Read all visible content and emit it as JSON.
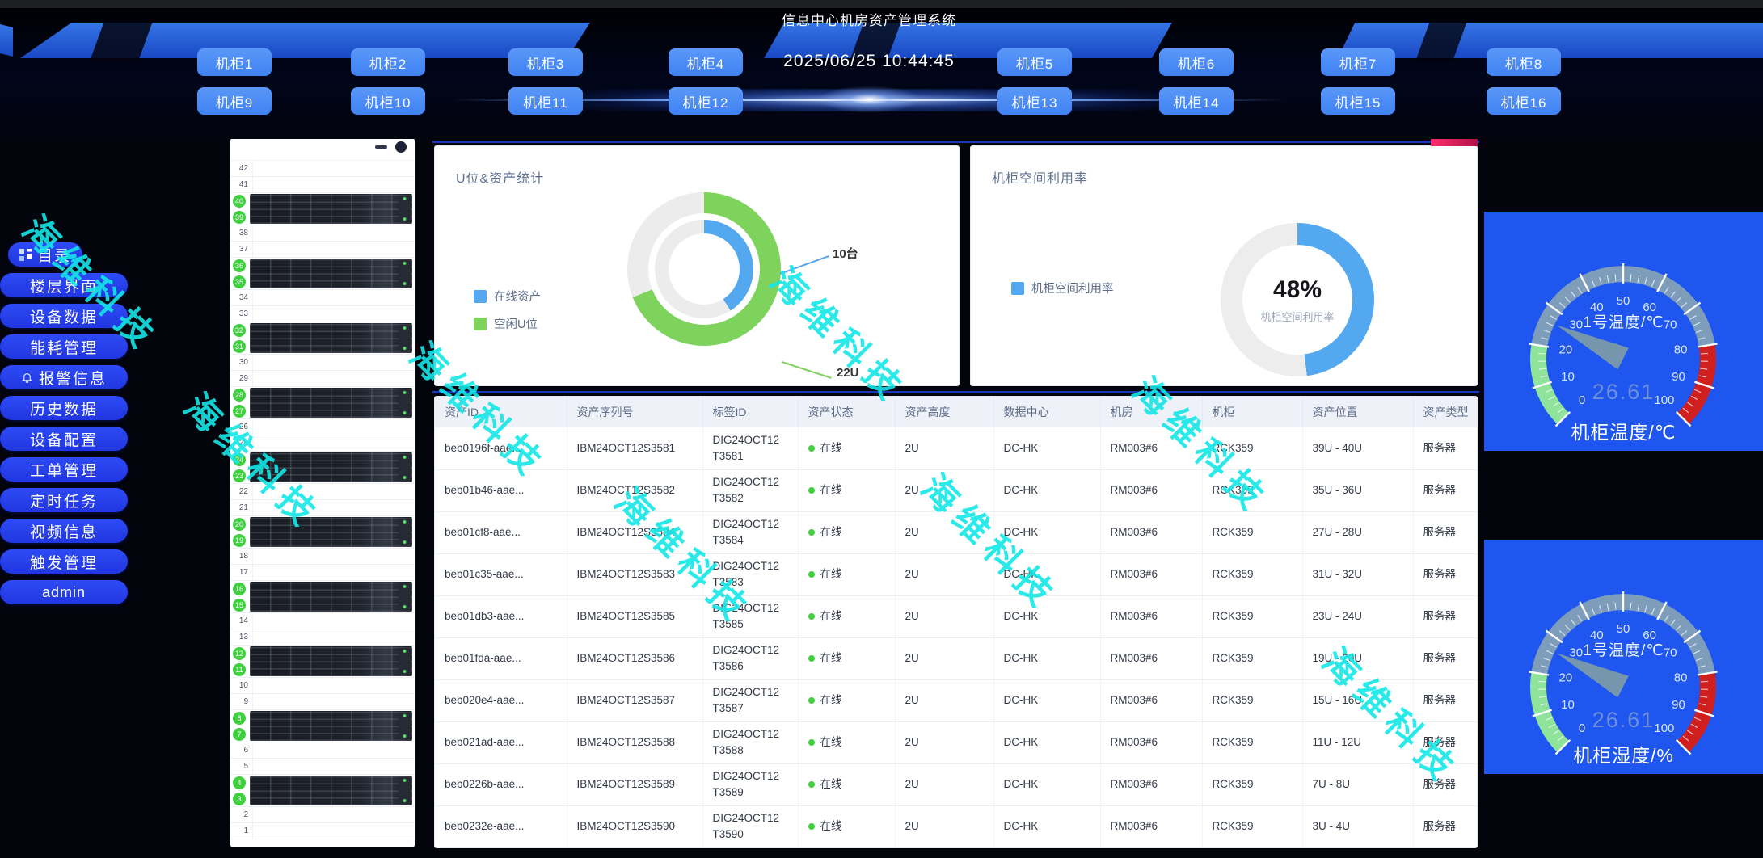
{
  "app": {
    "title": "信息中心机房资产管理系统",
    "datetime": "2025/06/25 10:44:45"
  },
  "cabinets": {
    "row1": [
      "机柜1",
      "机柜2",
      "机柜3",
      "机柜4",
      "机柜5",
      "机柜6",
      "机柜7",
      "机柜8"
    ],
    "row2": [
      "机柜9",
      "机柜10",
      "机柜11",
      "机柜12",
      "机柜13",
      "机柜14",
      "机柜15",
      "机柜16"
    ]
  },
  "sidebar": {
    "items": [
      {
        "label": "目录",
        "icon": "grid"
      },
      {
        "label": "楼层界面"
      },
      {
        "label": "设备数据"
      },
      {
        "label": "能耗管理"
      },
      {
        "label": "报警信息",
        "icon": "bell"
      },
      {
        "label": "历史数据"
      },
      {
        "label": "设备配置"
      },
      {
        "label": "工单管理"
      },
      {
        "label": "定时任务"
      },
      {
        "label": "视频信息"
      },
      {
        "label": "触发管理"
      },
      {
        "label": "admin"
      }
    ]
  },
  "rack": {
    "total_u": 42,
    "occupied_pairs": [
      [
        40,
        39
      ],
      [
        36,
        35
      ],
      [
        32,
        31
      ],
      [
        28,
        27
      ],
      [
        24,
        23
      ],
      [
        20,
        19
      ],
      [
        16,
        15
      ],
      [
        12,
        11
      ],
      [
        8,
        7
      ],
      [
        4,
        3
      ]
    ]
  },
  "chart_data": [
    {
      "type": "donut",
      "title": "U位&资产统计",
      "legend_position": "left",
      "series": [
        {
          "name": "在线资产",
          "value": 10,
          "unit": "台",
          "label": "10台",
          "color": "#54a8f0",
          "ring": "inner",
          "sweep_pct": 41
        },
        {
          "name": "空闲U位",
          "value": 22,
          "unit": "U",
          "label": "22U",
          "color": "#7ed35c",
          "ring": "outer",
          "sweep_pct": 69
        }
      ],
      "track_color": "#ececec"
    },
    {
      "type": "donut",
      "title": "机柜空间利用率",
      "legend": [
        "机柜空间利用率"
      ],
      "value": 48,
      "center_text": "48%",
      "center_sub": "机柜空间利用率",
      "color": "#54a8f0",
      "track_color": "#ededed"
    },
    {
      "type": "gauge",
      "name": "1号温度/℃",
      "value": 26.61,
      "min": 0,
      "max": 100,
      "bottom_title": "机柜温度/℃",
      "tick_labels": [
        0,
        10,
        20,
        30,
        40,
        50,
        60,
        70,
        80,
        90,
        100
      ],
      "zones": [
        {
          "from": 0,
          "to": 20,
          "color": "green"
        },
        {
          "from": 20,
          "to": 80,
          "color": "slate"
        },
        {
          "from": 80,
          "to": 100,
          "color": "red"
        }
      ]
    },
    {
      "type": "gauge",
      "name": "1号温度/℃",
      "value": 26.61,
      "min": 0,
      "max": 100,
      "bottom_title": "机柜湿度/%",
      "tick_labels": [
        0,
        10,
        20,
        30,
        40,
        50,
        60,
        70,
        80,
        90,
        100
      ],
      "zones": [
        {
          "from": 0,
          "to": 20,
          "color": "green"
        },
        {
          "from": 20,
          "to": 80,
          "color": "slate"
        },
        {
          "from": 80,
          "to": 100,
          "color": "red"
        }
      ]
    }
  ],
  "zone_colors": {
    "green": "#8fe39a",
    "slate": "#7e9dbb",
    "red": "#cf1f1f"
  },
  "table": {
    "headers": [
      "资产ID",
      "资产序列号",
      "标签ID",
      "资产状态",
      "资产高度",
      "数据中心",
      "机房",
      "机柜",
      "资产位置",
      "资产类型"
    ],
    "rows": [
      {
        "asset_id": "beb0196f-aae...",
        "serial": "IBM24OCT12S3581",
        "tag": "DIG24OCT12T3581",
        "status": "在线",
        "height": "2U",
        "datacenter": "DC-HK",
        "room": "RM003#6",
        "cabinet": "RCK359",
        "position": "39U - 40U",
        "type": "服务器"
      },
      {
        "asset_id": "beb01b46-aae...",
        "serial": "IBM24OCT12S3582",
        "tag": "DIG24OCT12T3582",
        "status": "在线",
        "height": "2U",
        "datacenter": "DC-HK",
        "room": "RM003#6",
        "cabinet": "RCK359",
        "position": "35U - 36U",
        "type": "服务器"
      },
      {
        "asset_id": "beb01cf8-aae...",
        "serial": "IBM24OCT12S3584",
        "tag": "DIG24OCT12T3584",
        "status": "在线",
        "height": "2U",
        "datacenter": "DC-HK",
        "room": "RM003#6",
        "cabinet": "RCK359",
        "position": "27U - 28U",
        "type": "服务器"
      },
      {
        "asset_id": "beb01c35-aae...",
        "serial": "IBM24OCT12S3583",
        "tag": "DIG24OCT12T3583",
        "status": "在线",
        "height": "2U",
        "datacenter": "DC-HK",
        "room": "RM003#6",
        "cabinet": "RCK359",
        "position": "31U - 32U",
        "type": "服务器"
      },
      {
        "asset_id": "beb01db3-aae...",
        "serial": "IBM24OCT12S3585",
        "tag": "DIG24OCT12T3585",
        "status": "在线",
        "height": "2U",
        "datacenter": "DC-HK",
        "room": "RM003#6",
        "cabinet": "RCK359",
        "position": "23U - 24U",
        "type": "服务器"
      },
      {
        "asset_id": "beb01fda-aae...",
        "serial": "IBM24OCT12S3586",
        "tag": "DIG24OCT12T3586",
        "status": "在线",
        "height": "2U",
        "datacenter": "DC-HK",
        "room": "RM003#6",
        "cabinet": "RCK359",
        "position": "19U - 20U",
        "type": "服务器"
      },
      {
        "asset_id": "beb020e4-aae...",
        "serial": "IBM24OCT12S3587",
        "tag": "DIG24OCT12T3587",
        "status": "在线",
        "height": "2U",
        "datacenter": "DC-HK",
        "room": "RM003#6",
        "cabinet": "RCK359",
        "position": "15U - 16U",
        "type": "服务器"
      },
      {
        "asset_id": "beb021ad-aae...",
        "serial": "IBM24OCT12S3588",
        "tag": "DIG24OCT12T3588",
        "status": "在线",
        "height": "2U",
        "datacenter": "DC-HK",
        "room": "RM003#6",
        "cabinet": "RCK359",
        "position": "11U - 12U",
        "type": "服务器"
      },
      {
        "asset_id": "beb0226b-aae...",
        "serial": "IBM24OCT12S3589",
        "tag": "DIG24OCT12T3589",
        "status": "在线",
        "height": "2U",
        "datacenter": "DC-HK",
        "room": "RM003#6",
        "cabinet": "RCK359",
        "position": "7U - 8U",
        "type": "服务器"
      },
      {
        "asset_id": "beb0232e-aae...",
        "serial": "IBM24OCT12S3590",
        "tag": "DIG24OCT12T3590",
        "status": "在线",
        "height": "2U",
        "datacenter": "DC-HK",
        "room": "RM003#6",
        "cabinet": "RCK359",
        "position": "3U - 4U",
        "type": "服务器"
      }
    ]
  },
  "watermark": {
    "text": "海维科技",
    "color": "#14e7e7"
  },
  "ui_colors": {
    "cabinet_button": "#5a97f8",
    "sidebar_button": "#2e4bf5",
    "gauge_card_bg": "#1e56ef",
    "status_online": "#3fcf3f",
    "table_header_bg": "#eef1f8",
    "corner_tag": "#ff2d6e"
  }
}
